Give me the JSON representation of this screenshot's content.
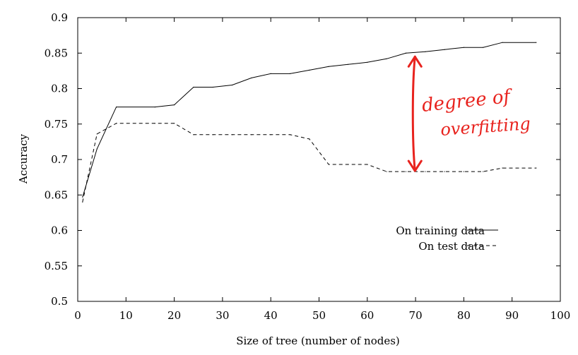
{
  "chart_data": {
    "type": "line",
    "xlabel": "Size of tree (number of nodes)",
    "ylabel": "Accuracy",
    "xlim": [
      0,
      100
    ],
    "ylim": [
      0.5,
      0.9
    ],
    "xticks": [
      0,
      10,
      20,
      30,
      40,
      50,
      60,
      70,
      80,
      90,
      100
    ],
    "yticks": [
      0.5,
      0.55,
      0.6,
      0.65,
      0.7,
      0.75,
      0.8,
      0.85,
      0.9
    ],
    "grid": false,
    "legend_position": "bottom-right",
    "series": [
      {
        "name": "On training data",
        "style": "solid",
        "x": [
          1,
          4,
          8,
          16,
          20,
          24,
          28,
          32,
          36,
          40,
          44,
          48,
          52,
          56,
          60,
          64,
          68,
          72,
          76,
          80,
          84,
          88,
          95
        ],
        "y": [
          0.647,
          0.715,
          0.774,
          0.774,
          0.777,
          0.802,
          0.802,
          0.805,
          0.815,
          0.821,
          0.821,
          0.826,
          0.831,
          0.834,
          0.837,
          0.842,
          0.85,
          0.852,
          0.855,
          0.858,
          0.858,
          0.865,
          0.865
        ]
      },
      {
        "name": "On test data",
        "style": "dashed",
        "x": [
          1,
          4,
          8,
          16,
          20,
          24,
          28,
          32,
          36,
          40,
          44,
          48,
          52,
          56,
          60,
          64,
          68,
          72,
          76,
          80,
          84,
          88,
          95
        ],
        "y": [
          0.64,
          0.736,
          0.751,
          0.751,
          0.751,
          0.735,
          0.735,
          0.735,
          0.735,
          0.735,
          0.735,
          0.729,
          0.693,
          0.693,
          0.693,
          0.683,
          0.683,
          0.683,
          0.683,
          0.683,
          0.683,
          0.688,
          0.688
        ]
      }
    ],
    "annotation": {
      "text_line1": "degree of",
      "text_line2": "overfitting",
      "color": "#e8231e",
      "arrow_x": 69,
      "arrow_y_top": 0.847,
      "arrow_y_bottom": 0.692
    }
  }
}
